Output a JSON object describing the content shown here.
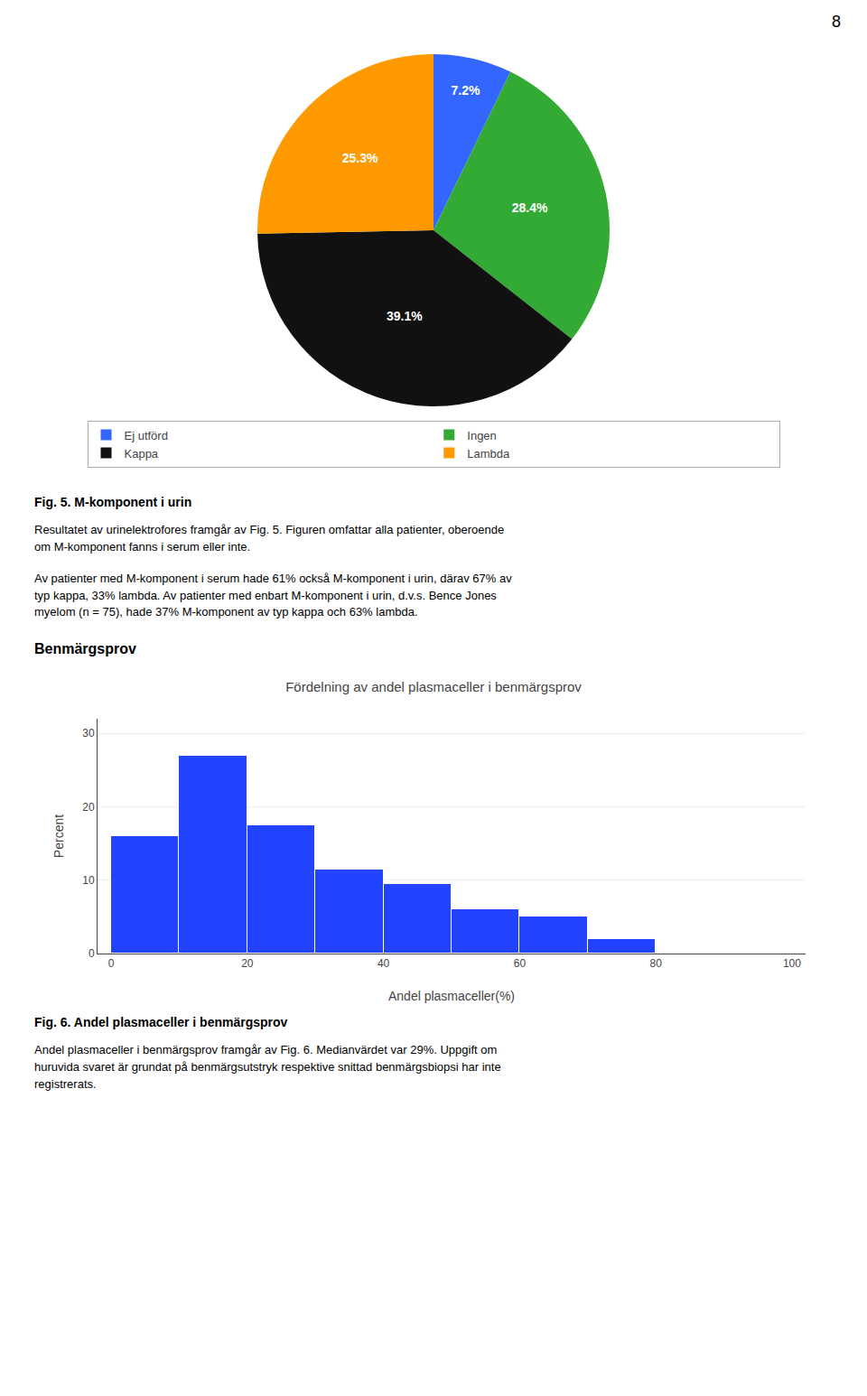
{
  "page_number": "8",
  "chart_data": [
    {
      "type": "pie",
      "categories": [
        "Ej utförd",
        "Ingen",
        "Kappa",
        "Lambda"
      ],
      "values": [
        7.2,
        28.4,
        39.1,
        25.3
      ],
      "value_labels": [
        "7.2%",
        "28.4%",
        "39.1%",
        "25.3%"
      ],
      "colors": [
        "#3366ff",
        "#33aa33",
        "#111111",
        "#ff9900"
      ],
      "data_labels": true,
      "legend": "bottom",
      "caption": "Fig. 5. M-komponent i urin",
      "paragraphs": [
        [
          "Resultatet av urinelektrofores framgår av Fig. 5. Figuren omfattar alla patienter, oberoende",
          "om M-komponent fanns i serum eller inte."
        ],
        [
          "Av patienter med M-komponent i serum hade 61% också M-komponent i urin, därav 67% av",
          "typ kappa, 33% lambda. Av patienter med enbart M-komponent i urin, d.v.s. Bence Jones",
          "myelom (n = 75), hade 37% M-komponent av typ kappa och 63% lambda."
        ]
      ]
    },
    {
      "type": "histogram",
      "heading": "Benmärgsprov",
      "title": "Fördelning av andel plasmaceller i benmärgsprov",
      "xlabel": "Andel plasmaceller(%)",
      "ylabel": "Percent",
      "bins": [
        0,
        10,
        20,
        30,
        40,
        50,
        60,
        70,
        80
      ],
      "values": [
        16.0,
        27.0,
        17.5,
        11.5,
        9.5,
        6.0,
        5.0,
        2.0
      ],
      "color": "#2244ff",
      "xlim": [
        -2,
        102
      ],
      "xticks": [
        0,
        20,
        40,
        60,
        80,
        100
      ],
      "ylim": [
        0,
        32
      ],
      "yticks": [
        0,
        10,
        20,
        30
      ],
      "grid": true,
      "caption": "Fig. 6. Andel plasmaceller i benmärgsprov",
      "paragraphs": [
        [
          "Andel plasmaceller i benmärgsprov framgår av Fig. 6. Medianvärdet var 29%. Uppgift om",
          "huruvida svaret är grundat på benmärgsutstryk respektive snittad benmärgsbiopsi har inte",
          "registrerats."
        ]
      ]
    }
  ]
}
